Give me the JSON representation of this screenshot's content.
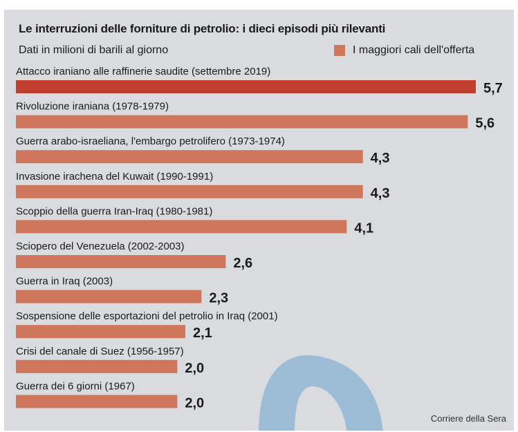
{
  "header": {
    "title": "Le interruzioni delle forniture di petrolio: i dieci episodi più rilevanti",
    "subtitle": "Dati in milioni di barili al giorno",
    "legend_label": "I maggiori cali dell'offerta"
  },
  "footer": {
    "source": "Corriere della Sera"
  },
  "colors": {
    "panel_bg": "#d9dbde",
    "bar": "#cf765d",
    "bar_highlight": "#c13f2e",
    "logo_watermark": "#9dbcd6"
  },
  "chart_data": {
    "type": "bar",
    "orientation": "horizontal",
    "unit": "milioni di barili al giorno",
    "categories": [
      "Attacco iraniano alle raffinerie saudite (settembre 2019)",
      "Rivoluzione iraniana (1978-1979)",
      "Guerra arabo-israeliana, l'embargo petrolifero (1973-1974)",
      "Invasione irachena del Kuwait (1990-1991)",
      "Scoppio della guerra Iran-Iraq (1980-1981)",
      "Sciopero del Venezuela (2002-2003)",
      "Guerra in Iraq (2003)",
      "Sospensione delle esportazioni del petrolio in Iraq (2001)",
      "Crisi del canale di Suez (1956-1957)",
      "Guerra dei 6 giorni (1967)"
    ],
    "values": [
      5.7,
      5.6,
      4.3,
      4.3,
      4.1,
      2.6,
      2.3,
      2.1,
      2.0,
      2.0
    ],
    "value_labels": [
      "5,7",
      "5,6",
      "4,3",
      "4,3",
      "4,1",
      "2,6",
      "2,3",
      "2,1",
      "2,0",
      "2,0"
    ],
    "highlight_index": 0,
    "xlim": [
      0,
      5.7
    ],
    "legend": "top-right",
    "grid": false
  }
}
